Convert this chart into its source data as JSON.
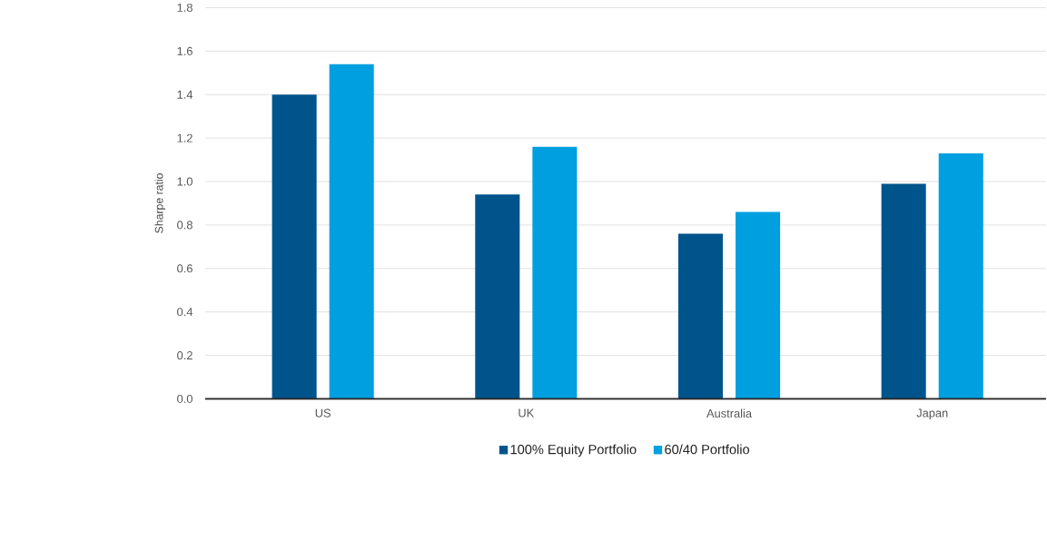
{
  "chart_data": {
    "type": "bar",
    "ylabel": "Sharpe ratio",
    "categories": [
      "US",
      "UK",
      "Australia",
      "Japan"
    ],
    "series": [
      {
        "name": "100% Equity Portfolio",
        "color": "#00548c",
        "values": [
          1.4,
          0.94,
          0.76,
          0.99
        ]
      },
      {
        "name": "60/40 Portfolio",
        "color": "#009fdf",
        "values": [
          1.54,
          1.16,
          0.86,
          1.13
        ]
      }
    ],
    "ylim": [
      0,
      1.8
    ],
    "yticks": [
      {
        "value": 0,
        "label": "0.0"
      },
      {
        "value": 0.2,
        "label": "0.2"
      },
      {
        "value": 0.4,
        "label": "0.4"
      },
      {
        "value": 0.6,
        "label": "0.6"
      },
      {
        "value": 0.8,
        "label": "0.8"
      },
      {
        "value": 1.0,
        "label": "1.0"
      },
      {
        "value": 1.2,
        "label": "1.2"
      },
      {
        "value": 1.4,
        "label": "1.4"
      },
      {
        "value": 1.6,
        "label": "1.6"
      },
      {
        "value": 1.8,
        "label": "1.8"
      }
    ],
    "grid": "y",
    "legend": "bottom"
  }
}
